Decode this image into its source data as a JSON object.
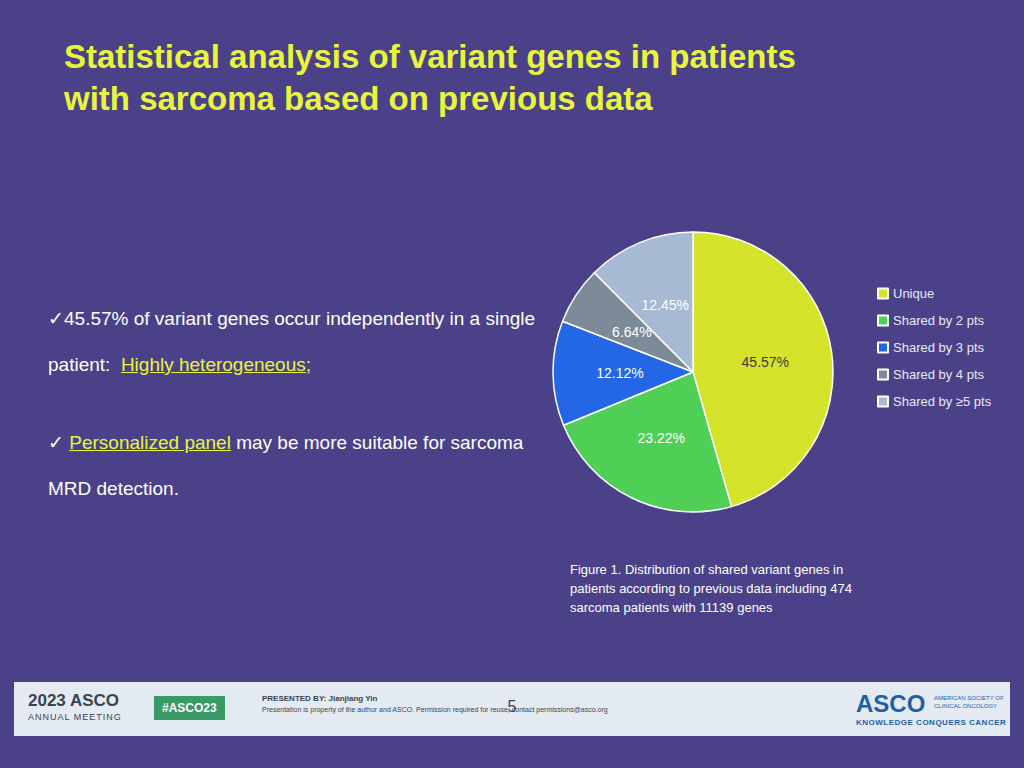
{
  "chart_data": {
    "type": "pie",
    "title": "Statistical analysis of variant genes in patients\nwith sarcoma based on previous data",
    "annotations": [
      [
        "✓45.57% of variant genes occur independently in a single patient:  ",
        "Highly heterogeneous;"
      ],
      [
        "✓ ",
        "Personalized panel",
        " may be more suitable for sarcoma MRD detection."
      ]
    ],
    "caption": "Figure 1. Distribution of shared variant genes in\npatients according to previous data including 474\nsarcoma patients with 11139 genes",
    "categories": [
      "Unique",
      "Shared by 2 pts",
      "Shared by 3 pts",
      "Shared by 4 pts",
      "Shared by ≥5 pts"
    ],
    "values": [
      45.57,
      23.22,
      12.12,
      6.64,
      12.45
    ],
    "value_labels": [
      "45.57%",
      "23.22%",
      "12.12%",
      "6.64%",
      "12.45%"
    ],
    "colors": [
      "#d6e32b",
      "#4fcf55",
      "#2367e6",
      "#7d8a99",
      "#a7bad3"
    ],
    "data_labels": true,
    "legend": "right",
    "footer": {
      "meeting": "2023 ASCO",
      "meeting_sub": "ANNUAL MEETING",
      "hashtag": "#ASCO23",
      "presenter": "PRESENTED BY: Jianjiang Yin",
      "notice": "Presentation is property of the author and ASCO. Permission required for reuse; contact permissions@asco.org",
      "page": "5",
      "logo": "ASCO",
      "logo_sub": "AMERICAN SOCIETY OF CLINICAL ONCOLOGY",
      "tagline": "KNOWLEDGE CONQUERS CANCER"
    }
  }
}
